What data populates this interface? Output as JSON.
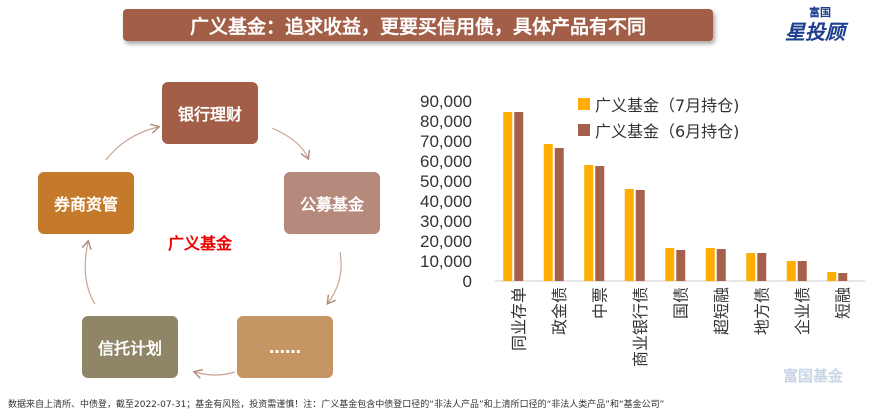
{
  "title": "广义基金：追求收益，更要买信用债，具体产品有不同",
  "logo": {
    "top": "富国",
    "main": "星投顾"
  },
  "watermark": "富国基金",
  "diagram": {
    "center": "广义基金",
    "nodes": [
      {
        "label": "银行理财",
        "color": "#a35e48"
      },
      {
        "label": "公募基金",
        "color": "#b58a7c"
      },
      {
        "label": "……",
        "color": "#c59563"
      },
      {
        "label": "信托计划",
        "color": "#8f8668"
      },
      {
        "label": "券商资管",
        "color": "#c47a2a"
      }
    ]
  },
  "footer": "数据来自上清所、中债登，截至2022-07-31；基金有风险，投资需谨慎！注：广义基金包含中债登口径的“非法人产品”和上清所口径的“非法人类产品”和“基金公司”",
  "chart_data": {
    "type": "bar",
    "categories": [
      "同业存单",
      "政金债",
      "中票",
      "商业银行债",
      "国债",
      "超短融",
      "地方债",
      "企业债",
      "短融"
    ],
    "series": [
      {
        "name": "广义基金（7月持仓)",
        "color": "#ffad00",
        "values": [
          84500,
          68500,
          58000,
          46000,
          16500,
          16500,
          14000,
          10000,
          4500
        ]
      },
      {
        "name": "广义基金（6月持仓)",
        "color": "#a5614b",
        "values": [
          84500,
          66500,
          57500,
          45500,
          15500,
          16000,
          14000,
          10000,
          4000
        ]
      }
    ],
    "ylim": [
      0,
      90000
    ],
    "yticks": [
      "0",
      "10,000",
      "20,000",
      "30,000",
      "40,000",
      "50,000",
      "60,000",
      "70,000",
      "80,000",
      "90,000"
    ],
    "legend": "top-right"
  }
}
